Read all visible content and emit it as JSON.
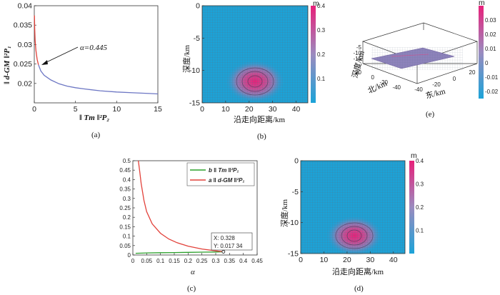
{
  "figure": {
    "colors": {
      "low": "#1ba3d8",
      "mid": "#9b8bbf",
      "high": "#e8207a",
      "red": "#e2413a",
      "green": "#2ca02c",
      "blue": "#6d77c4"
    }
  },
  "chart_data": [
    {
      "id": "a",
      "type": "line",
      "panel_label": "(a)",
      "xlabel": "‖ Tm ‖²P₂",
      "ylabel": "‖ d-GM ‖²P₁",
      "xlim": [
        0,
        15
      ],
      "ylim": [
        0.015,
        0.04
      ],
      "xticks": [
        "0",
        "5",
        "10",
        "15"
      ],
      "yticks": [
        "0.02",
        "0.025",
        "0.03",
        "0.035",
        "0.04"
      ],
      "annotation": "α=0.445",
      "x": [
        0.02,
        0.05,
        0.1,
        0.2,
        0.35,
        0.5,
        0.8,
        1.2,
        2,
        3,
        4,
        5,
        6,
        8,
        10,
        12,
        14,
        15
      ],
      "y": [
        0.0375,
        0.034,
        0.031,
        0.0285,
        0.0262,
        0.0248,
        0.0232,
        0.0221,
        0.0209,
        0.0199,
        0.0193,
        0.0189,
        0.0186,
        0.0181,
        0.0178,
        0.0176,
        0.0174,
        0.0173
      ]
    },
    {
      "id": "b",
      "type": "heatmap",
      "panel_label": "(b)",
      "xlabel": "沿走向距离/km",
      "ylabel": "深度/km",
      "xlim": [
        0,
        45
      ],
      "ylim": [
        -15,
        0
      ],
      "xticks": [
        "0",
        "10",
        "20",
        "30",
        "40"
      ],
      "yticks": [
        "0",
        "-5",
        "-10",
        "-15"
      ],
      "colorbar_unit": "m",
      "colorbar_ticks": [
        "0.4",
        "0.3",
        "0.2",
        "0.1"
      ],
      "slip_center_km": [
        22.5,
        -12
      ],
      "max_slip": 0.4
    },
    {
      "id": "e",
      "type": "heatmap",
      "panel_label": "(e)",
      "xlabel": "东/km",
      "ylabel": "北/km",
      "zlabel": "深度/km",
      "xticks": [
        "20",
        "0",
        "-20",
        "-40"
      ],
      "yticks": [
        "20",
        "0",
        "-20",
        "-40"
      ],
      "zticks": [
        "-5",
        "-10",
        "-15"
      ],
      "colorbar_unit": "m",
      "colorbar_ticks": [
        "0.03",
        "0.02",
        "0.01",
        "0",
        "-0.01",
        "-0.02"
      ]
    },
    {
      "id": "c",
      "type": "line",
      "panel_label": "(c)",
      "xlabel": "α",
      "xlim": [
        0,
        0.45
      ],
      "ylim": [
        0,
        0.5
      ],
      "xticks": [
        "0",
        "0.05",
        "0.1",
        "0.15",
        "0.2",
        "0.25",
        "0.3",
        "0.35",
        "0.4",
        "0.45"
      ],
      "yticks": [
        "0",
        "0.05",
        "0.1",
        "0.15",
        "0.2",
        "0.25",
        "0.3",
        "0.35",
        "0.4",
        "0.45",
        "0.5"
      ],
      "legend": [
        "b ‖ Tm ‖²P₁",
        "a ‖ d-GM ‖²P₁"
      ],
      "datatip": {
        "x_label": "X: 0.328",
        "y_label": "Y: 0.017 34"
      },
      "series": [
        {
          "name": "b",
          "x": [
            0.01,
            0.05,
            0.1,
            0.15,
            0.2,
            0.25,
            0.3,
            0.33
          ],
          "y": [
            0.009,
            0.011,
            0.012,
            0.013,
            0.014,
            0.015,
            0.016,
            0.017
          ]
        },
        {
          "name": "a",
          "x": [
            0.02,
            0.025,
            0.03,
            0.04,
            0.05,
            0.07,
            0.1,
            0.13,
            0.16,
            0.2,
            0.25,
            0.3,
            0.328
          ],
          "y": [
            0.5,
            0.44,
            0.38,
            0.29,
            0.23,
            0.165,
            0.115,
            0.085,
            0.065,
            0.047,
            0.032,
            0.022,
            0.0173
          ]
        }
      ]
    },
    {
      "id": "d",
      "type": "heatmap",
      "panel_label": "(d)",
      "xlabel": "沿走向距离/km",
      "ylabel": "深度/km",
      "xlim": [
        0,
        45
      ],
      "ylim": [
        -15,
        0
      ],
      "xticks": [
        "0",
        "10",
        "20",
        "30",
        "40"
      ],
      "yticks": [
        "0",
        "-5",
        "-10",
        "-15"
      ],
      "colorbar_unit": "m",
      "colorbar_ticks": [
        "0.4",
        "0.3",
        "0.2",
        "0.1"
      ],
      "slip_center_km": [
        23,
        -12
      ],
      "max_slip": 0.4
    }
  ]
}
